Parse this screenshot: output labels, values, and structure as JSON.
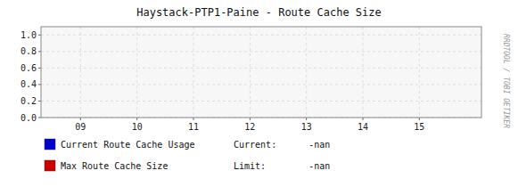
{
  "chart_data": {
    "type": "line",
    "title": "Haystack-PTP1-Paine - Route Cache Size",
    "x": [],
    "series": [
      {
        "name": "Current Route Cache Usage",
        "color": "#0000cc",
        "values": []
      },
      {
        "name": "Max Route Cache Size",
        "color": "#cc0000",
        "values": []
      }
    ],
    "annotations": [
      "Current:      -nan",
      "Limit:        -nan",
      "RRDTOOL / TOBI OETIKER"
    ],
    "xlim": [
      8.3,
      16.1
    ],
    "xticks": [
      {
        "value": 9,
        "label": "09"
      },
      {
        "value": 10,
        "label": "10"
      },
      {
        "value": 11,
        "label": "11"
      },
      {
        "value": 12,
        "label": "12"
      },
      {
        "value": 13,
        "label": "13"
      },
      {
        "value": 14,
        "label": "14"
      },
      {
        "value": 15,
        "label": "15"
      }
    ],
    "ylim": [
      0.0,
      1.1
    ],
    "yticks": [
      {
        "value": 0.0,
        "label": "0.0"
      },
      0.2,
      0.4,
      0.6,
      0.8,
      {
        "value": 1.0,
        "label": "1.0"
      }
    ],
    "grid": true,
    "legend": "bottom"
  }
}
